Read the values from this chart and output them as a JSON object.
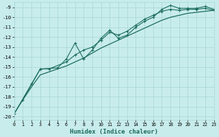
{
  "xlabel": "Humidex (Indice chaleur)",
  "background_color": "#c8ecec",
  "grid_color": "#a8d4d4",
  "line_color": "#1a6b5a",
  "xlim": [
    0,
    23
  ],
  "ylim": [
    -20.3,
    -8.5
  ],
  "yticks": [
    -20,
    -19,
    -18,
    -17,
    -16,
    -15,
    -14,
    -13,
    -12,
    -11,
    -10,
    -9
  ],
  "xticks": [
    0,
    1,
    2,
    3,
    4,
    5,
    6,
    7,
    8,
    9,
    10,
    11,
    12,
    13,
    14,
    15,
    16,
    17,
    18,
    19,
    20,
    21,
    22,
    23
  ],
  "smooth_x": [
    0,
    1,
    2,
    3,
    4,
    5,
    6,
    7,
    8,
    9,
    10,
    11,
    12,
    13,
    14,
    15,
    16,
    17,
    18,
    19,
    20,
    21,
    22,
    23
  ],
  "smooth_y": [
    -19.7,
    -18.3,
    -17.0,
    -15.8,
    -15.5,
    -15.2,
    -14.9,
    -14.5,
    -14.1,
    -13.6,
    -13.1,
    -12.7,
    -12.3,
    -11.9,
    -11.5,
    -11.1,
    -10.7,
    -10.3,
    -10.0,
    -9.8,
    -9.6,
    -9.5,
    -9.4,
    -9.3
  ],
  "marked1_x": [
    0,
    2,
    3,
    5,
    6,
    7,
    8,
    9,
    10,
    11,
    12,
    13,
    14,
    15,
    16,
    17,
    18,
    19,
    20,
    21,
    22,
    23
  ],
  "marked1_y": [
    -19.7,
    -16.7,
    -15.2,
    -15.1,
    -14.2,
    -12.6,
    -14.2,
    -13.3,
    -12.1,
    -11.3,
    -12.1,
    -11.8,
    -11.0,
    -10.4,
    -10.0,
    -9.2,
    -8.8,
    -9.1,
    -9.1,
    -9.1,
    -8.9,
    -9.2
  ],
  "marked2_x": [
    1,
    3,
    4,
    6,
    7,
    8,
    9,
    10,
    11,
    12,
    13,
    14,
    15,
    16,
    17,
    18,
    19,
    20,
    21,
    22,
    23
  ],
  "marked2_y": [
    -18.3,
    -15.2,
    -15.2,
    -14.5,
    -13.8,
    -13.3,
    -13.0,
    -12.3,
    -11.5,
    -11.8,
    -11.4,
    -10.8,
    -10.2,
    -9.8,
    -9.4,
    -9.2,
    -9.3,
    -9.2,
    -9.2,
    -9.1,
    -9.3
  ]
}
